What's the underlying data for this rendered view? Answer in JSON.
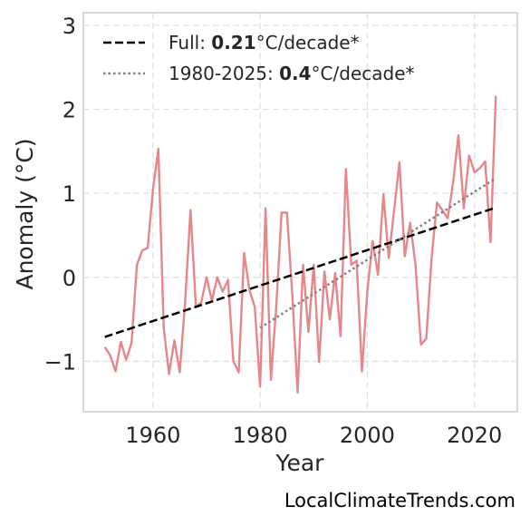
{
  "chart_data": {
    "type": "line",
    "title": "",
    "xlabel": "Year",
    "ylabel": "Anomaly (°C)",
    "xlim": [
      1947,
      2028
    ],
    "ylim": [
      -1.6,
      3.15
    ],
    "xticks": [
      1960,
      1980,
      2000,
      2020
    ],
    "yticks": [
      3,
      2,
      1,
      0,
      -1
    ],
    "ytick_labels": [
      "3",
      "2",
      "1",
      "0",
      "−1"
    ],
    "grid": true,
    "legend_position": "top-left",
    "series": [
      {
        "color": "#e6868b",
        "x": [
          1951,
          1952,
          1953,
          1954,
          1955,
          1956,
          1957,
          1958,
          1959,
          1960,
          1961,
          1962,
          1963,
          1964,
          1965,
          1966,
          1967,
          1968,
          1969,
          1970,
          1971,
          1972,
          1973,
          1974,
          1975,
          1976,
          1977,
          1978,
          1979,
          1980,
          1981,
          1982,
          1983,
          1984,
          1985,
          1986,
          1987,
          1988,
          1989,
          1990,
          1991,
          1992,
          1993,
          1994,
          1995,
          1996,
          1997,
          1998,
          1999,
          2000,
          2001,
          2002,
          2003,
          2004,
          2005,
          2006,
          2007,
          2008,
          2009,
          2010,
          2011,
          2012,
          2013,
          2014,
          2015,
          2016,
          2017,
          2018,
          2019,
          2020,
          2021,
          2022,
          2023,
          2024
        ],
        "y": [
          -0.83,
          -0.93,
          -1.12,
          -0.77,
          -0.98,
          -0.78,
          0.15,
          0.32,
          0.35,
          1.05,
          1.53,
          -0.6,
          -1.15,
          -0.75,
          -1.13,
          -0.28,
          0.8,
          -0.35,
          -0.3,
          0.0,
          -0.28,
          0.0,
          -0.17,
          -0.03,
          -1.0,
          -1.13,
          0.29,
          -0.15,
          -0.35,
          -1.3,
          0.82,
          -1.22,
          -0.35,
          0.77,
          0.77,
          -0.2,
          -1.37,
          0.15,
          -0.65,
          0.15,
          -1.01,
          0.07,
          -0.5,
          0.05,
          -0.7,
          1.29,
          0.15,
          0.2,
          -1.12,
          -0.17,
          0.43,
          0.03,
          0.99,
          0.23,
          0.8,
          1.37,
          0.25,
          0.65,
          0.15,
          -0.8,
          -0.73,
          0.23,
          0.89,
          0.8,
          0.7,
          1.12,
          1.69,
          0.82,
          1.45,
          1.25,
          1.3,
          1.38,
          0.42,
          2.16
        ]
      }
    ],
    "trends": [
      {
        "style": "dashed",
        "color": "#000000",
        "x": [
          1951,
          2024
        ],
        "y": [
          -0.71,
          0.83
        ],
        "legend_prefix": "Full: ",
        "legend_value": "0.21",
        "legend_suffix": "°C/decade*"
      },
      {
        "style": "dotted",
        "color": "#808080",
        "x": [
          1980,
          2024
        ],
        "y": [
          -0.6,
          1.18
        ],
        "legend_prefix": "1980-2025: ",
        "legend_value": "0.4",
        "legend_suffix": "°C/decade*"
      }
    ]
  },
  "footer": {
    "source": "LocalClimateTrends.com"
  }
}
